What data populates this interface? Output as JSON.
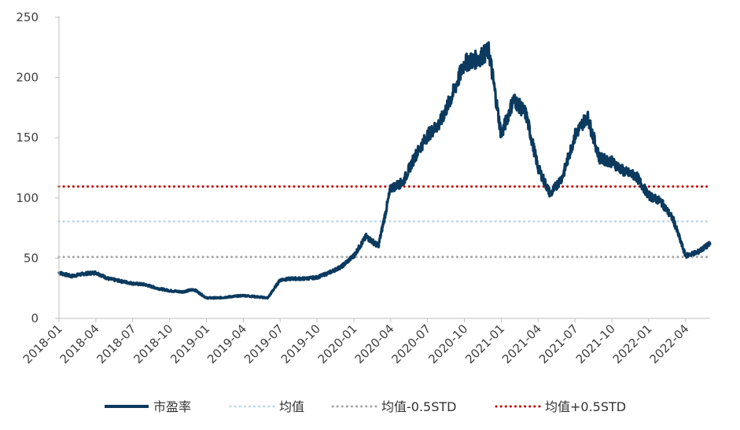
{
  "chart_data": {
    "type": "line",
    "yticks": [
      0,
      50,
      100,
      150,
      200,
      250
    ],
    "ylim": [
      0,
      250
    ],
    "xticks": [
      "2018-01",
      "2018-04",
      "2018-07",
      "2018-10",
      "2019-01",
      "2019-04",
      "2019-07",
      "2019-10",
      "2020-01",
      "2020-04",
      "2020-07",
      "2020-10",
      "2021-01",
      "2021-04",
      "2021-07",
      "2021-10",
      "2022-01",
      "2022-04"
    ],
    "xlim": [
      "2018-01",
      "2022-06"
    ],
    "colors": {
      "pe": "#0b3a5e",
      "mean": "#bdd7ee",
      "minus": "#a6a6a6",
      "plus": "#c00000",
      "axis": "#bfbfbf"
    },
    "series": [
      {
        "name": "市盈率",
        "style": "solid",
        "x": [
          "2018-01",
          "2018-02",
          "2018-03",
          "2018-04",
          "2018-05",
          "2018-06",
          "2018-07",
          "2018-08",
          "2018-09",
          "2018-10",
          "2018-11",
          "2018-12",
          "2019-01",
          "2019-02",
          "2019-03",
          "2019-04",
          "2019-05",
          "2019-06",
          "2019-07",
          "2019-08",
          "2019-09",
          "2019-10",
          "2019-11",
          "2019-12",
          "2020-01",
          "2020-02",
          "2020-03",
          "2020-04",
          "2020-05",
          "2020-06",
          "2020-07",
          "2020-08",
          "2020-09",
          "2020-10",
          "2020-11",
          "2020-12",
          "2021-01",
          "2021-02",
          "2021-03",
          "2021-04",
          "2021-05",
          "2021-06",
          "2021-07",
          "2021-08",
          "2021-09",
          "2021-10",
          "2021-11",
          "2021-12",
          "2022-01",
          "2022-02",
          "2022-03",
          "2022-04",
          "2022-05",
          "2022-06"
        ],
        "values": [
          38,
          35,
          37,
          38,
          33,
          31,
          29,
          28,
          25,
          23,
          22,
          24,
          17,
          17,
          18,
          19,
          18,
          17,
          32,
          33,
          33,
          34,
          38,
          43,
          52,
          68,
          60,
          108,
          113,
          135,
          152,
          162,
          185,
          212,
          215,
          222,
          152,
          182,
          170,
          125,
          103,
          118,
          152,
          168,
          133,
          130,
          122,
          118,
          102,
          97,
          82,
          52,
          55,
          62
        ]
      },
      {
        "name": "均值",
        "style": "dotted",
        "values": [
          80.5
        ]
      },
      {
        "name": "均值-0.5STD",
        "style": "dotted",
        "values": [
          51
        ]
      },
      {
        "name": "均值+0.5STD",
        "style": "dotted",
        "values": [
          109.5
        ]
      }
    ]
  }
}
